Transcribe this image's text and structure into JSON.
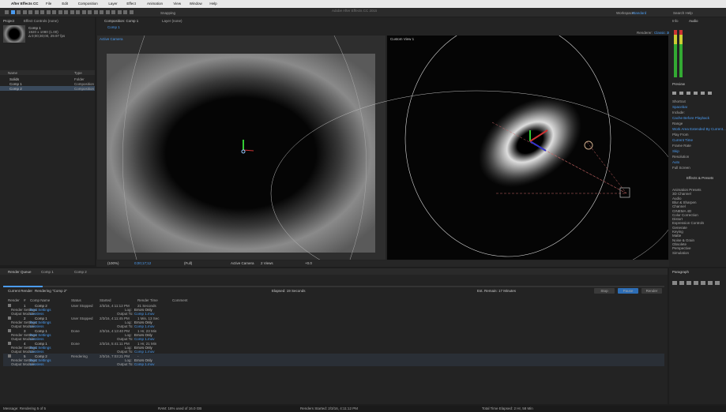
{
  "menu": {
    "app": "After Effects CC",
    "items": [
      "File",
      "Edit",
      "Composition",
      "Layer",
      "Effect",
      "Animation",
      "View",
      "Window",
      "Help"
    ],
    "title": "Adobe After Effects CC 2015"
  },
  "toolbar": {
    "snapping": "Snapping",
    "workspace": "Workspace:",
    "workspace_value": "Standard",
    "search": "Search Help"
  },
  "project": {
    "tabs": [
      "Project",
      "Effect Controls (none)"
    ],
    "comp_name": "Comp 1",
    "comp_info": [
      "1920 x 1080 (1.00)",
      "Δ 0;00;30;00, 29.97 fps"
    ],
    "columns": [
      "Name",
      "Type"
    ],
    "items": [
      {
        "name": "Solids",
        "type": "Folder"
      },
      {
        "name": "Comp 1",
        "type": "Composition"
      },
      {
        "name": "Comp 2",
        "type": "Composition"
      }
    ]
  },
  "composition": {
    "tab": "Composition: Comp 1",
    "layer_tab": "Layer (none)",
    "comp_tab": "Comp 1",
    "renderer": "Renderer:",
    "renderer_value": "Classic 3D",
    "left_view": "Active Camera",
    "right_view": "Custom View 1",
    "footer": {
      "zoom": "(100%)",
      "time": "0;00;17;12",
      "res": "(Full)",
      "camera": "Active Camera",
      "views": "2 Views",
      "exposure": "+0.0"
    }
  },
  "render_queue": {
    "tabs": [
      "Render Queue",
      "Comp 1",
      "Comp 2"
    ],
    "current": "Current Render",
    "rendering": "Rendering \"Comp 2\"",
    "elapsed": "Elapsed: 19 Seconds",
    "remain": "Est. Remain: 17 Minutes",
    "buttons": [
      "Stop",
      "Pause",
      "Render"
    ],
    "columns": [
      "Render",
      "#",
      "Comp Name",
      "Status",
      "Started",
      "Render Time",
      "Comment"
    ],
    "rows": [
      {
        "num": "1",
        "comp": "Comp 2",
        "status": "User Stopped",
        "started": "2/3/16, 4:11:12 PM",
        "time": "21 Seconds"
      },
      {
        "num": "2",
        "comp": "Comp 1",
        "status": "User Stopped",
        "started": "2/3/16, 4:11:45 PM",
        "time": "1 Min, 13 Sec"
      },
      {
        "num": "3",
        "comp": "Comp 1",
        "status": "Done",
        "started": "2/3/16, 4:13:40 PM",
        "time": "1 Hr, 23 Min"
      },
      {
        "num": "4",
        "comp": "Comp 1",
        "status": "Done",
        "started": "2/3/16, 5:41:11 PM",
        "time": "1 Hr, 21 Min"
      },
      {
        "num": "5",
        "comp": "Comp 2",
        "status": "Rendering",
        "started": "2/3/16, 7:03:21 PM",
        "time": "-"
      }
    ],
    "render_settings": "Render Settings:",
    "settings_value": "Best Settings",
    "output_module": "Output Module:",
    "module_value": "Lossless",
    "log": "Log:",
    "log_value": "Errors Only",
    "output_to": "Output To:",
    "output_value": "Comp 1.mov"
  },
  "right_panel": {
    "tabs": [
      "Info",
      "Audio"
    ],
    "preview": "Preview",
    "preview_items": [
      "Shortcut",
      "Spacebar",
      "Include:",
      "Cache Before Playback",
      "Range",
      "Work Area Extended By Current...",
      "Play From",
      "Current Time",
      "Frame Rate",
      "Skip",
      "Resolution",
      "Auto",
      "Full Screen"
    ],
    "effects": "Effects & Presets",
    "effects_items": [
      "Animation Presets",
      "3D Channel",
      "Audio",
      "Blur & Sharpen",
      "Channel",
      "CINEMA 4D",
      "Color Correction",
      "Distort",
      "Expression Controls",
      "Generate",
      "Keying",
      "Matte",
      "Noise & Grain",
      "Obsolete",
      "Perspective",
      "Simulation"
    ],
    "paragraph": "Paragraph"
  },
  "status_bar": [
    "Message: Rendering 5 of 5",
    "RAM: 18% used of 16.0 GB",
    "Renders Started: 2/3/16, 4:11:12 PM",
    "Total Time Elapsed: 2 Hr, 58 Min"
  ]
}
